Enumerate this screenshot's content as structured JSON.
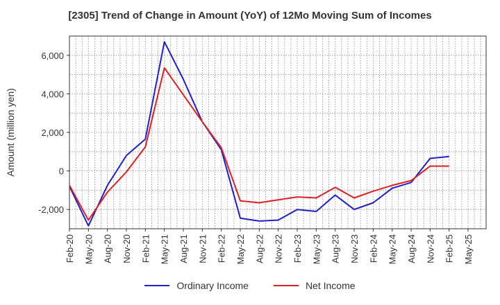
{
  "chart_data": {
    "type": "line",
    "title": "[2305]  Trend of Change in Amount (YoY) of 12Mo Moving Sum of Incomes",
    "xlabel": "",
    "ylabel": "Amount (million yen)",
    "ylim": [
      -3000,
      7000
    ],
    "yticks": [
      -2000,
      0,
      2000,
      4000,
      6000
    ],
    "ytick_labels": [
      "-2,000",
      "0",
      "2,000",
      "4,000",
      "6,000"
    ],
    "grid": true,
    "legend_position": "bottom",
    "x_tick_labels": [
      "Feb-20",
      "May-20",
      "Aug-20",
      "Nov-20",
      "Feb-21",
      "May-21",
      "Aug-21",
      "Nov-21",
      "Feb-22",
      "May-22",
      "Aug-22",
      "Nov-22",
      "Feb-23",
      "May-23",
      "Aug-23",
      "Nov-23",
      "Feb-24",
      "May-24",
      "Aug-24",
      "Nov-24",
      "Feb-25",
      "May-25"
    ],
    "x": [
      "Feb-20",
      "May-20",
      "Aug-20",
      "Nov-20",
      "Feb-21",
      "May-21",
      "Aug-21",
      "Nov-21",
      "Feb-22",
      "May-22",
      "Aug-22",
      "Nov-22",
      "Feb-23",
      "May-23",
      "Aug-23",
      "Nov-23",
      "Feb-24",
      "May-24",
      "Aug-24",
      "Nov-24",
      "Feb-25"
    ],
    "series": [
      {
        "name": "Ordinary Income",
        "color": "#1f1fcc",
        "values": [
          -800,
          -2850,
          -750,
          800,
          1650,
          6700,
          4750,
          2550,
          1100,
          -2450,
          -2600,
          -2550,
          -2000,
          -2100,
          -1250,
          -2000,
          -1650,
          -900,
          -600,
          650,
          750
        ]
      },
      {
        "name": "Net Income",
        "color": "#e02020",
        "values": [
          -750,
          -2550,
          -1100,
          -50,
          1250,
          5350,
          3950,
          2550,
          1200,
          -1550,
          -1650,
          -1500,
          -1350,
          -1400,
          -850,
          -1400,
          -1050,
          -750,
          -500,
          250,
          250
        ]
      }
    ]
  }
}
